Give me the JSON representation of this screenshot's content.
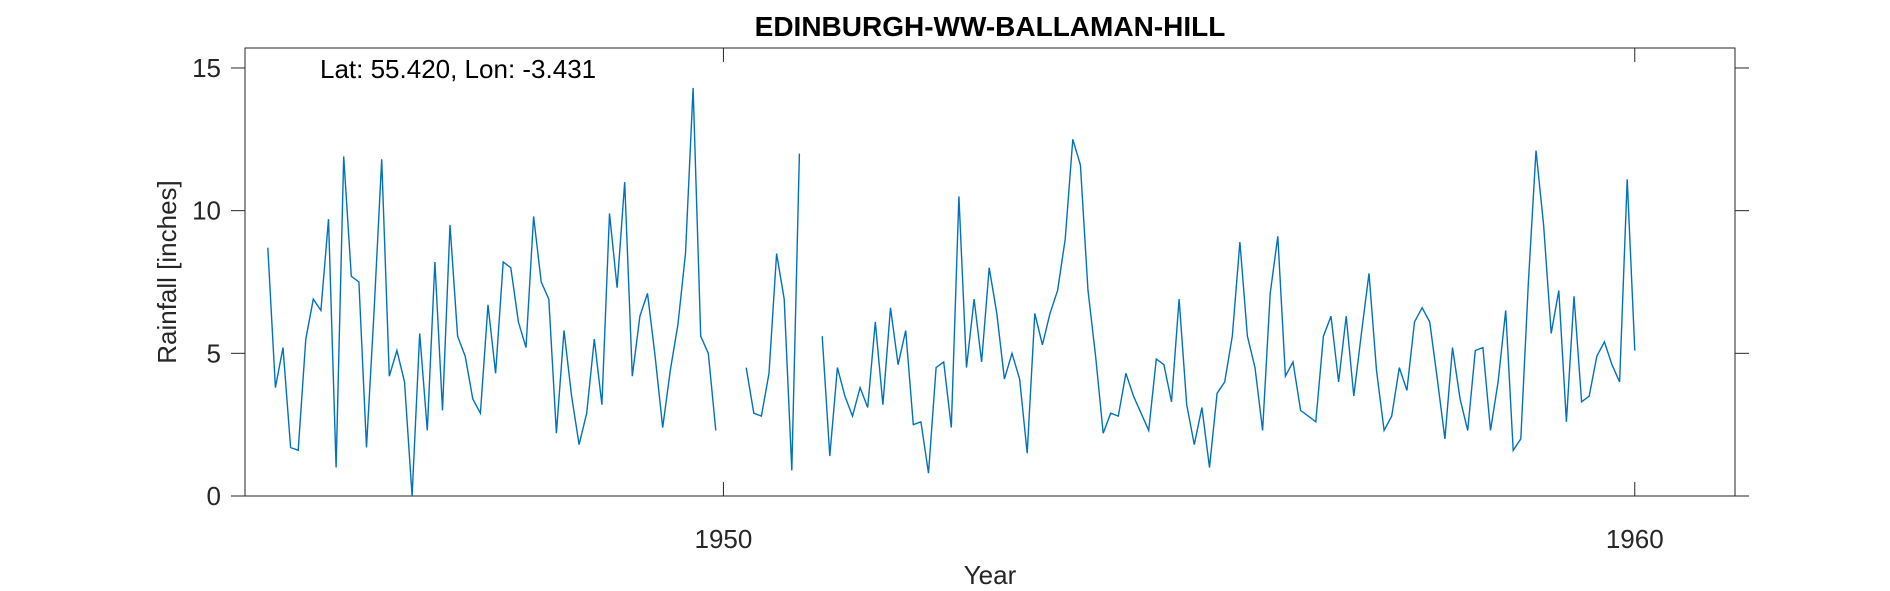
{
  "chart_data": {
    "type": "line",
    "title": "EDINBURGH-WW-BALLAMAN-HILL",
    "annotation": "Lat: 55.420, Lon: -3.431",
    "xlabel": "Year",
    "ylabel": "Rainfall [inches]",
    "xlim": [
      1944.75,
      1961.1
    ],
    "ylim": [
      0,
      15.7
    ],
    "xticks": [
      1950,
      1960
    ],
    "yticks": [
      0,
      5,
      10,
      15
    ],
    "grid": false,
    "line_color": "#0072BD",
    "series": [
      {
        "values_start": "1945-01",
        "frequency": "monthly",
        "values": [
          8.7,
          3.8,
          5.2,
          1.7,
          1.6,
          5.5,
          6.9,
          6.5,
          9.7,
          1.0,
          11.9,
          7.7,
          7.5,
          1.7,
          6.5,
          11.8,
          4.2,
          5.1,
          4.0,
          0.0,
          5.7,
          2.3,
          8.2,
          3.0,
          9.5,
          5.6,
          4.9,
          3.4,
          2.9,
          6.7,
          4.3,
          8.2,
          8.0,
          6.1,
          5.2,
          9.8,
          7.5,
          6.9,
          2.2,
          5.8,
          3.5,
          1.8,
          2.9,
          5.5,
          3.2,
          9.9,
          7.3,
          11.0,
          4.2,
          6.3,
          7.1,
          4.9,
          2.4,
          4.4,
          6.0,
          8.5,
          14.3,
          5.6,
          5.0,
          2.3,
          null,
          null,
          null,
          4.5,
          2.9,
          2.8,
          4.3,
          8.5,
          6.9,
          0.9,
          12.0,
          null,
          null,
          5.6,
          1.4,
          4.5,
          3.5,
          2.8,
          3.8,
          3.1,
          6.1,
          3.2,
          6.6,
          4.6,
          5.8,
          2.5,
          2.6,
          0.8,
          4.5,
          4.7,
          2.4,
          10.5,
          4.5,
          6.9,
          4.7,
          8.0,
          6.4,
          4.1,
          5.0,
          4.1,
          1.5,
          6.4,
          5.3,
          6.4,
          7.2,
          9.0,
          12.5,
          11.6,
          7.2,
          4.9,
          2.2,
          2.9,
          2.8,
          4.3,
          3.5,
          2.9,
          2.3,
          4.8,
          4.6,
          3.3,
          6.9,
          3.2,
          1.8,
          3.1,
          1.0,
          3.6,
          4.0,
          5.6,
          8.9,
          5.6,
          4.5,
          2.3,
          7.1,
          9.1,
          4.2,
          4.7,
          3.0,
          2.8,
          2.6,
          5.6,
          6.3,
          4.0,
          6.3,
          3.5,
          5.7,
          7.8,
          4.4,
          2.3,
          2.8,
          4.5,
          3.7,
          6.1,
          6.6,
          6.1,
          4.1,
          2.0,
          5.2,
          3.4,
          2.3,
          5.1,
          5.2,
          2.3,
          4.0,
          6.5,
          1.6,
          2.0,
          7.5,
          12.1,
          9.5,
          5.7,
          7.2,
          2.6,
          7.0,
          3.3,
          3.5,
          4.9,
          5.4,
          4.6,
          4.0,
          11.1,
          5.1
        ]
      }
    ]
  }
}
